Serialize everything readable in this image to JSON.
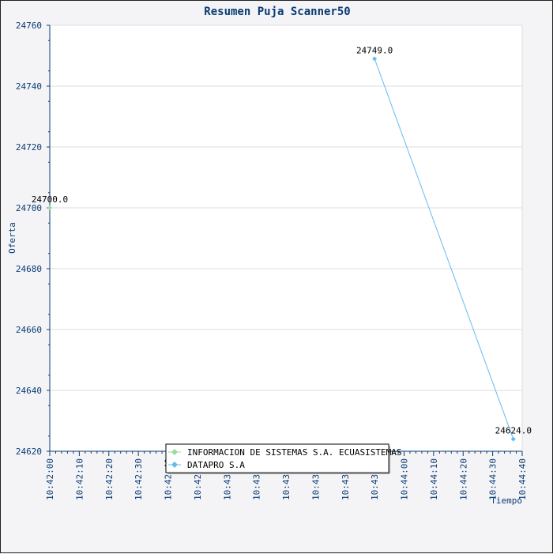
{
  "chart_data": {
    "type": "line",
    "title": "Resumen Puja Scanner50",
    "xlabel": "Tiempo",
    "ylabel": "Oferta",
    "ylim": [
      24620,
      24760
    ],
    "y_ticks": [
      24620,
      24640,
      24660,
      24680,
      24700,
      24720,
      24740,
      24760
    ],
    "x_range": [
      "10:42:00",
      "10:44:40"
    ],
    "x_ticks": [
      "10:42:00",
      "10:42:10",
      "10:42:20",
      "10:42:30",
      "10:42:40",
      "10:42:50",
      "10:43:00",
      "10:43:10",
      "10:43:20",
      "10:43:30",
      "10:43:40",
      "10:43:50",
      "10:44:00",
      "10:44:10",
      "10:44:20",
      "10:44:30",
      "10:44:40"
    ],
    "grid": true,
    "legend_position": "bottom-center",
    "series": [
      {
        "name": "INFORMACION DE SISTEMAS S.A. ECUASISTEMAS",
        "color": "#99dd99",
        "points": [
          {
            "x": "10:42:00",
            "y": 24700,
            "label": "24700.0"
          }
        ]
      },
      {
        "name": "DATAPRO S.A",
        "color": "#66bbee",
        "points": [
          {
            "x": "10:43:50",
            "y": 24749,
            "label": "24749.0"
          },
          {
            "x": "10:44:37",
            "y": 24624,
            "label": "24624.0"
          }
        ]
      }
    ]
  }
}
